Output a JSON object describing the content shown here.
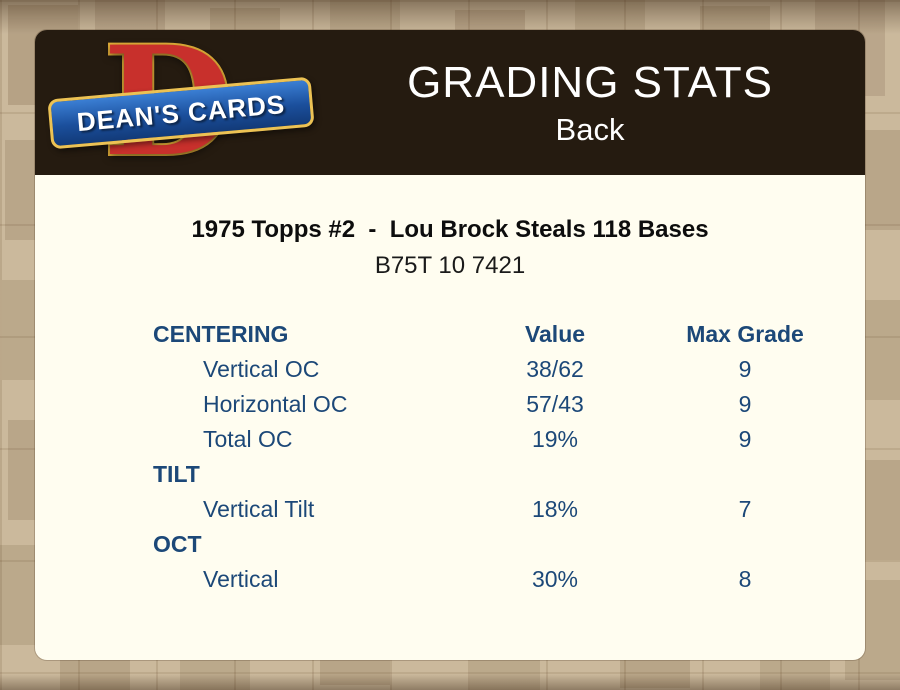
{
  "header": {
    "title": "GRADING STATS",
    "subtitle": "Back"
  },
  "logo": {
    "letter": "D",
    "text": "DEAN'S CARDS"
  },
  "card": {
    "title": "1975 Topps #2  -  Lou Brock Steals 118 Bases",
    "code": "B75T 10 7421"
  },
  "table": {
    "columns": [
      "Value",
      "Max Grade"
    ],
    "sections": [
      {
        "label": "CENTERING",
        "rows": [
          {
            "label": "Vertical OC",
            "value": "38/62",
            "max_grade": "9"
          },
          {
            "label": "Horizontal OC",
            "value": "57/43",
            "max_grade": "9"
          },
          {
            "label": "Total OC",
            "value": "19%",
            "max_grade": "9"
          }
        ]
      },
      {
        "label": "TILT",
        "rows": [
          {
            "label": "Vertical Tilt",
            "value": "18%",
            "max_grade": "7"
          }
        ]
      },
      {
        "label": "OCT",
        "rows": [
          {
            "label": "Vertical",
            "value": "30%",
            "max_grade": "8"
          }
        ]
      }
    ]
  },
  "colors": {
    "header_bg": "#251b10",
    "panel_bg": "#fffdf0",
    "accent_blue": "#1c4878",
    "logo_red": "#c8302c",
    "logo_gold": "#e8b23a",
    "logo_blue": "#1b4f9c",
    "background_tan": "#cbb99c"
  }
}
